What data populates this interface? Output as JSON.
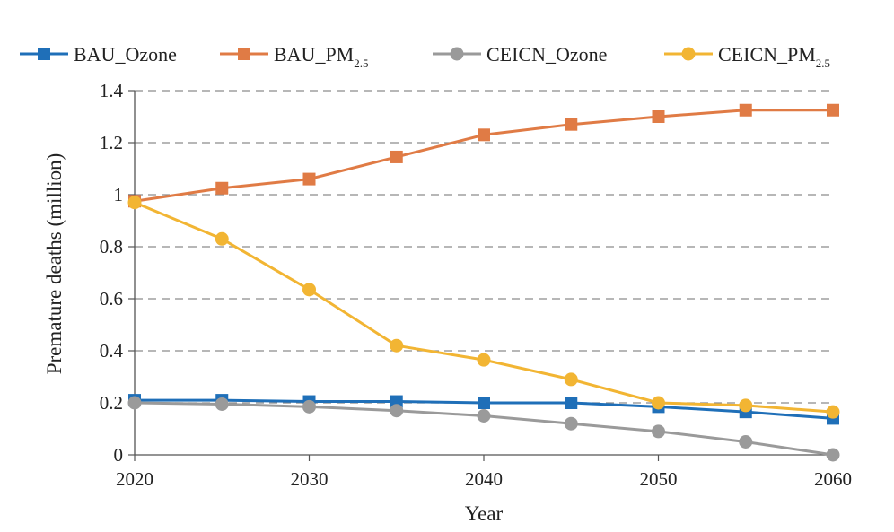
{
  "chart_data": {
    "type": "line",
    "title": "",
    "xlabel": "Year",
    "ylabel": "Premature deaths (million)",
    "xlim": [
      2020,
      2060
    ],
    "ylim": [
      0,
      1.4
    ],
    "x": [
      2020,
      2025,
      2030,
      2035,
      2040,
      2045,
      2050,
      2055,
      2060
    ],
    "x_ticks": [
      "2020",
      "2030",
      "2040",
      "2050",
      "2060"
    ],
    "y_ticks": [
      "0",
      "0.2",
      "0.4",
      "0.6",
      "0.8",
      "1",
      "1.2",
      "1.4"
    ],
    "grid": "horizontal dashed",
    "legend_position": "top",
    "series": [
      {
        "name": "BAU_Ozone",
        "name_main": "BAU_Ozone",
        "name_sub": "",
        "color": "#1f6fb8",
        "marker": "square",
        "values": [
          0.21,
          0.21,
          0.205,
          0.205,
          0.2,
          0.2,
          0.185,
          0.165,
          0.14
        ]
      },
      {
        "name": "BAU_PM2.5",
        "name_main": "BAU_PM",
        "name_sub": "2.5",
        "color": "#e07b45",
        "marker": "square",
        "values": [
          0.975,
          1.025,
          1.06,
          1.145,
          1.23,
          1.27,
          1.3,
          1.325,
          1.325
        ]
      },
      {
        "name": "CEICN_Ozone",
        "name_main": "CEICN_Ozone",
        "name_sub": "",
        "color": "#9a9a9a",
        "marker": "circle",
        "values": [
          0.2,
          0.195,
          0.185,
          0.17,
          0.15,
          0.12,
          0.09,
          0.05,
          0.0
        ]
      },
      {
        "name": "CEICN_PM2.5",
        "name_main": "CEICN_PM",
        "name_sub": "2.5",
        "color": "#f2b533",
        "marker": "circle",
        "values": [
          0.97,
          0.83,
          0.635,
          0.42,
          0.365,
          0.29,
          0.2,
          0.19,
          0.165
        ]
      }
    ]
  }
}
